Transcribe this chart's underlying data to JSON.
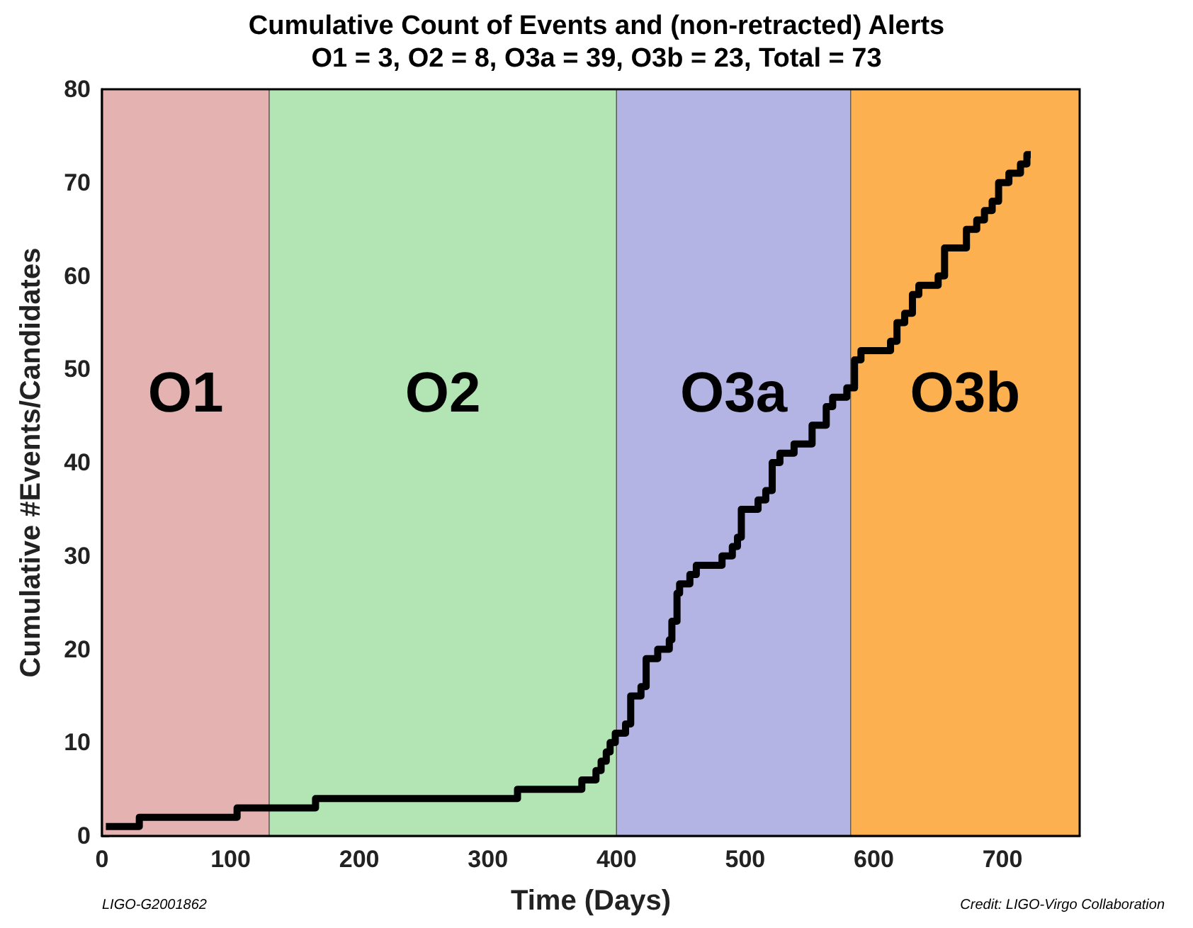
{
  "chart_data": {
    "type": "step",
    "title": "Cumulative Count of Events and (non-retracted) Alerts",
    "subtitle": "O1 = 3, O2 = 8, O3a = 39, O3b = 23, Total = 73",
    "xlabel": "Time (Days)",
    "ylabel": "Cumulative #Events/Candidates",
    "xlim": [
      0,
      760
    ],
    "xticks": [
      0,
      100,
      200,
      300,
      400,
      500,
      600,
      700
    ],
    "ylim": [
      0,
      80
    ],
    "yticks": [
      0,
      10,
      20,
      30,
      40,
      50,
      60,
      70,
      80
    ],
    "grid": false,
    "marker": "none",
    "line_style": "solid",
    "series": [
      {
        "color": "#000000",
        "x": [
          3,
          29,
          105,
          166,
          323,
          373,
          384,
          388,
          392,
          395,
          399,
          407,
          411,
          419,
          423,
          432,
          441,
          443,
          447,
          449,
          457,
          462,
          482,
          490,
          494,
          497,
          510,
          516,
          521,
          527,
          538,
          552,
          563,
          568,
          579,
          585,
          590,
          613,
          618,
          624,
          630,
          635,
          650,
          655,
          672,
          680,
          686,
          692,
          697,
          705,
          714,
          719,
          722
        ],
        "values": [
          1,
          2,
          3,
          4,
          5,
          6,
          7,
          8,
          9,
          10,
          11,
          12,
          15,
          16,
          19,
          20,
          21,
          23,
          26,
          27,
          28,
          29,
          30,
          31,
          32,
          35,
          36,
          37,
          40,
          41,
          42,
          44,
          46,
          47,
          48,
          51,
          52,
          53,
          55,
          56,
          58,
          59,
          60,
          63,
          65,
          66,
          67,
          68,
          70,
          71,
          72,
          73,
          73
        ]
      }
    ],
    "bands": [
      {
        "axis": "x",
        "from": 0,
        "to": 130,
        "label": "O1",
        "color": "#e5b2b2"
      },
      {
        "axis": "x",
        "from": 130,
        "to": 400,
        "label": "O2",
        "color": "#b3e4b3"
      },
      {
        "axis": "x",
        "from": 400,
        "to": 582,
        "label": "O3a",
        "color": "#b3b3e4"
      },
      {
        "axis": "x",
        "from": 582,
        "to": 760,
        "label": "O3b",
        "color": "#fdb04f"
      }
    ],
    "annotations": [
      "LIGO-G2001862",
      "Credit: LIGO-Virgo Collaboration"
    ]
  }
}
